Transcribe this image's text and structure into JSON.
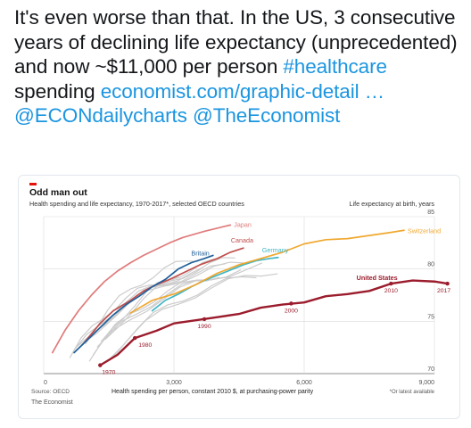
{
  "tweet": {
    "text_before": "It's even worse than that. In the US, 3 consecutive years of declining life expectancy (unprecedented) and now ~$11,000 per person ",
    "hashtag": "#healthcare",
    "text_middle": " spending ",
    "link": "economist.com/graphic-detail …",
    "mention1": "@ECONdailycharts",
    "mention2": "@TheEconomist"
  },
  "chart_data": {
    "type": "line",
    "title": "Odd man out",
    "subtitle": "Health spending and life expectancy, 1970-2017*, selected OECD countries",
    "ylabel": "Life expectancy at birth, years",
    "xlabel": "Health spending per person, constant 2010 $, at purchasing-power parity",
    "source": "Source: OECD",
    "footnote": "*Or latest available",
    "brand": "The Economist",
    "xlim": [
      0,
      9000
    ],
    "ylim": [
      70,
      85
    ],
    "x_ticks": [
      0,
      3000,
      6000,
      9000
    ],
    "x_tick_labels": [
      "0",
      "3,000",
      "6,000",
      "9,000"
    ],
    "y_ticks": [
      70,
      75,
      80,
      85
    ],
    "y_tick_labels": [
      "70",
      "75",
      "80",
      "85"
    ],
    "grid": true,
    "colors": {
      "japan": "#e07b7b",
      "canada": "#c0504d",
      "britain": "#1f5f9a",
      "germany": "#41b6c4",
      "switzerland": "#f0a830",
      "united_states": "#9b1c2c",
      "others": "#cccccc"
    },
    "series": [
      {
        "name": "Japan",
        "x": [
          200,
          500,
          800,
          1100,
          1400,
          1700,
          2000,
          2300,
          2600,
          2900,
          3200,
          3700,
          4100,
          4300
        ],
        "y": [
          72.0,
          74.2,
          76.0,
          77.5,
          78.8,
          79.8,
          80.6,
          81.3,
          81.9,
          82.5,
          83.0,
          83.6,
          84.0,
          84.2
        ]
      },
      {
        "name": "Canada",
        "x": [
          900,
          1300,
          1600,
          2000,
          2300,
          2600,
          2900,
          3200,
          3600,
          4000,
          4300,
          4600
        ],
        "y": [
          72.8,
          74.8,
          76.0,
          77.0,
          77.9,
          78.5,
          79.0,
          79.6,
          80.4,
          81.0,
          81.6,
          82.0
        ]
      },
      {
        "name": "Britain",
        "x": [
          700,
          1000,
          1300,
          1600,
          1900,
          2200,
          2500,
          2800,
          3100,
          3400,
          3700,
          3900
        ],
        "y": [
          72.0,
          73.2,
          74.4,
          75.6,
          76.6,
          77.4,
          78.3,
          79.0,
          80.0,
          80.6,
          81.0,
          81.3
        ]
      },
      {
        "name": "Germany",
        "x": [
          2500,
          2800,
          3100,
          3400,
          3700,
          4000,
          4300,
          4600,
          4900,
          5200,
          5400
        ],
        "y": [
          76.0,
          77.0,
          77.6,
          78.3,
          78.9,
          79.4,
          79.9,
          80.4,
          80.8,
          81.0,
          81.1
        ]
      },
      {
        "name": "Switzerland",
        "x": [
          2000,
          2500,
          3000,
          3500,
          4000,
          4500,
          5000,
          5500,
          6000,
          6500,
          7000,
          7500,
          8000,
          8300
        ],
        "y": [
          75.8,
          77.0,
          77.6,
          78.5,
          79.6,
          80.4,
          81.0,
          81.6,
          82.4,
          82.8,
          82.9,
          83.2,
          83.5,
          83.7
        ]
      },
      {
        "name": "United States",
        "x": [
          1300,
          1700,
          2100,
          2600,
          3000,
          3500,
          4000,
          4500,
          5000,
          5500,
          6000,
          6500,
          7000,
          7500,
          8000,
          8500,
          9000,
          9300
        ],
        "y": [
          70.8,
          71.8,
          73.4,
          74.1,
          74.8,
          75.1,
          75.4,
          75.7,
          76.3,
          76.6,
          76.8,
          77.4,
          77.6,
          77.9,
          78.6,
          78.9,
          78.8,
          78.6
        ]
      }
    ],
    "other_series_count": 12,
    "year_markers": [
      {
        "label": "1970",
        "x": 1300,
        "y": 70.8
      },
      {
        "label": "1980",
        "x": 2100,
        "y": 73.4
      },
      {
        "label": "1990",
        "x": 3700,
        "y": 75.2
      },
      {
        "label": "2000",
        "x": 5700,
        "y": 76.7
      },
      {
        "label": "2010",
        "x": 8000,
        "y": 78.6
      },
      {
        "label": "2017",
        "x": 9300,
        "y": 78.6
      }
    ]
  }
}
